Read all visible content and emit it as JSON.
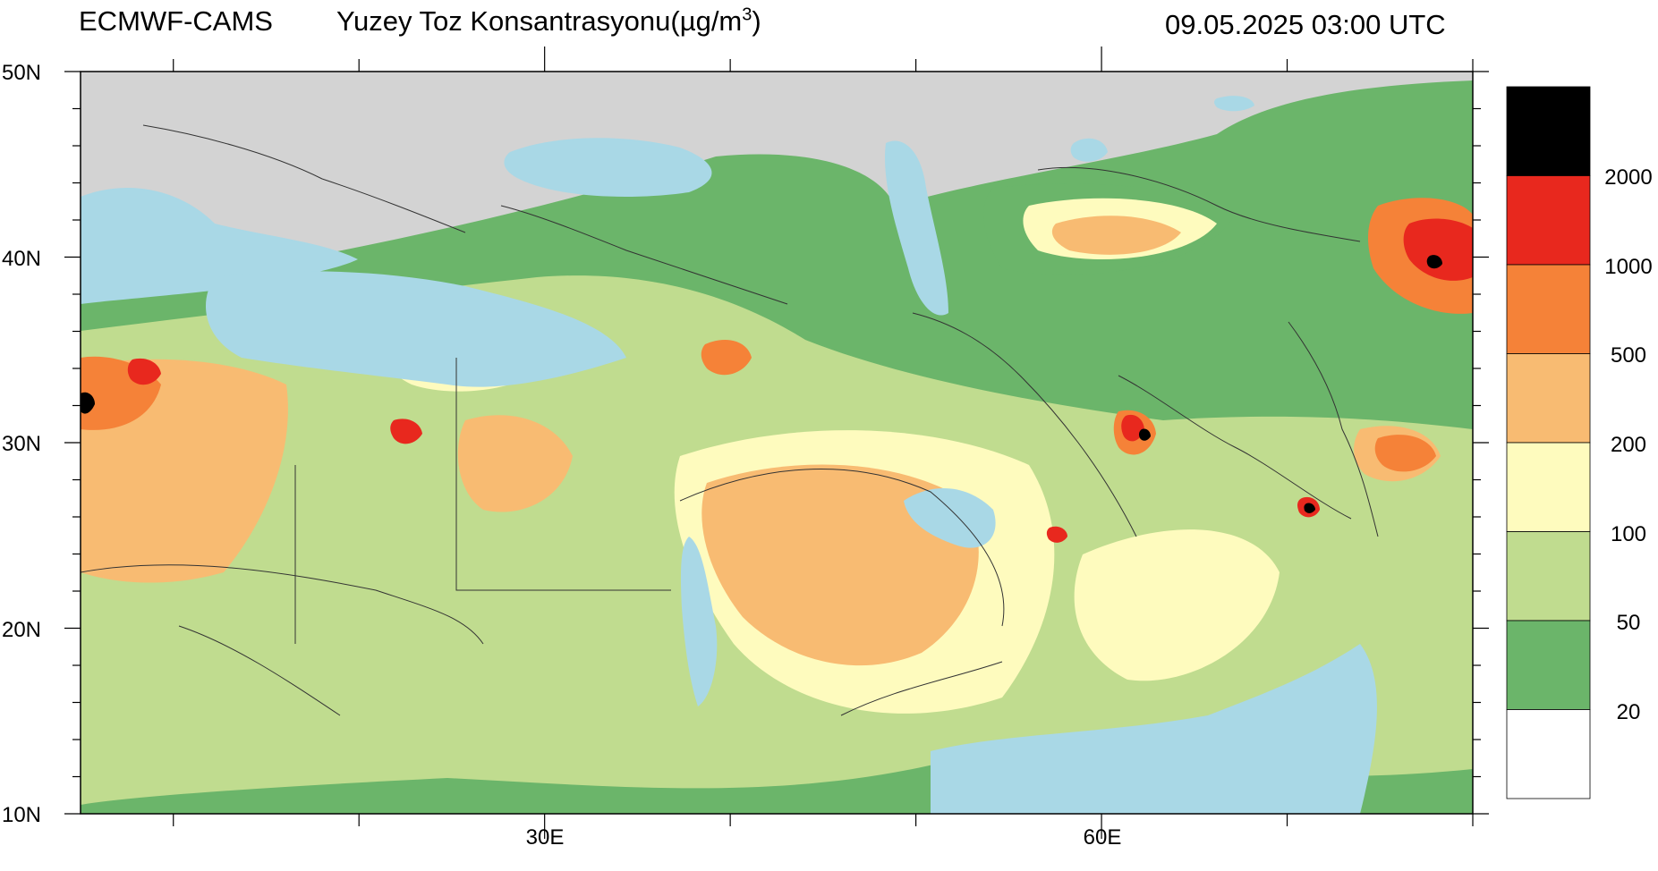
{
  "header": {
    "source": "ECMWF-CAMS",
    "title_main": "Yuzey Toz Konsantrasyonu(µg/m",
    "title_sup": "3",
    "title_close": ")",
    "datetime": "09.05.2025 03:00 UTC"
  },
  "axes": {
    "lat_labels": [
      "50N",
      "40N",
      "30N",
      "20N",
      "10N"
    ],
    "lon_labels": [
      "30E",
      "60E"
    ]
  },
  "colorbar": {
    "labels": [
      "2000",
      "1000",
      "500",
      "200",
      "100",
      "50",
      "20"
    ],
    "colors": [
      "#000000",
      "#e8281e",
      "#f58238",
      "#f8bb72",
      "#fefbbe",
      "#c0dc8f",
      "#6bb56a",
      "#ffffff"
    ]
  },
  "map_colors": {
    "land": "#d3d3d3",
    "water": "#a9d8e6"
  }
}
